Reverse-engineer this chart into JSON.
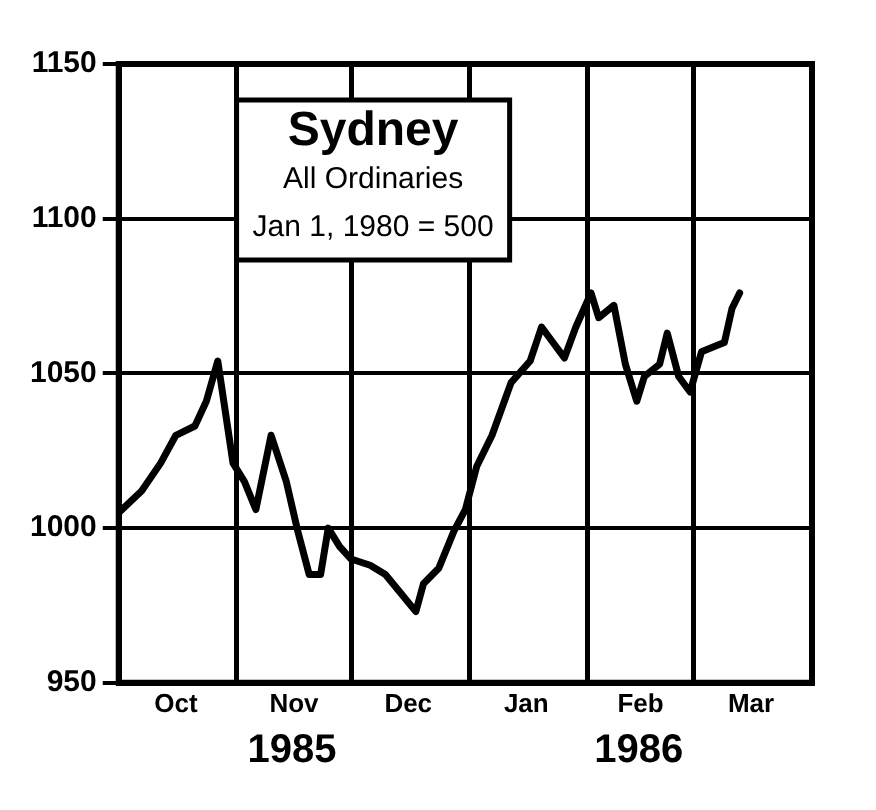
{
  "chart_data": {
    "type": "line",
    "title": "Sydney",
    "subtitle": "All Ordinaries",
    "annotations": [
      "Jan 1, 1980 = 500",
      "1985",
      "1986"
    ],
    "x": [
      "1985-10-01",
      "1985-10-07",
      "1985-10-12",
      "1985-10-16",
      "1985-10-21",
      "1985-10-24",
      "1985-10-27",
      "1985-10-31",
      "1985-11-03",
      "1985-11-06",
      "1985-11-10",
      "1985-11-14",
      "1985-11-17",
      "1985-11-20",
      "1985-11-23",
      "1985-11-25",
      "1985-11-28",
      "1985-12-01",
      "1985-12-06",
      "1985-12-10",
      "1985-12-14",
      "1985-12-18",
      "1985-12-20",
      "1985-12-24",
      "1985-12-28",
      "1985-12-31",
      "1986-01-03",
      "1986-01-07",
      "1986-01-12",
      "1986-01-17",
      "1986-01-20",
      "1986-01-23",
      "1986-01-26",
      "1986-01-29",
      "1986-02-02",
      "1986-02-04",
      "1986-02-08",
      "1986-02-11",
      "1986-02-14",
      "1986-02-16",
      "1986-02-20",
      "1986-02-22",
      "1986-02-25",
      "1986-02-28",
      "1986-03-03",
      "1986-03-07",
      "1986-03-09",
      "1986-03-11",
      "1986-03-13"
    ],
    "series": [
      {
        "color": "#000000",
        "values": [
          1005,
          1012,
          1021,
          1030,
          1033,
          1041,
          1054,
          1021,
          1015,
          1006,
          1030,
          1015,
          999,
          985,
          985,
          1000,
          994,
          990,
          988,
          985,
          979,
          973,
          982,
          987,
          999,
          1006,
          1020,
          1030,
          1047,
          1054,
          1065,
          1060,
          1055,
          1065,
          1076,
          1068,
          1072,
          1053,
          1041,
          1049,
          1053,
          1063,
          1049,
          1044,
          1057,
          1059,
          1060,
          1071,
          1076
        ]
      }
    ],
    "xlim": [
      "1985-10-01",
      "1986-04-01"
    ],
    "xticks": [
      {
        "value": "1985-10-01",
        "label": null
      },
      {
        "value": "1985-10-16",
        "label": "Oct"
      },
      {
        "value": "1985-11-01",
        "label": null
      },
      {
        "value": "1985-11-16",
        "label": "Nov"
      },
      {
        "value": "1985-12-01",
        "label": null
      },
      {
        "value": "1985-12-16",
        "label": "Dec"
      },
      {
        "value": "1986-01-01",
        "label": null
      },
      {
        "value": "1986-01-16",
        "label": "Jan"
      },
      {
        "value": "1986-02-01",
        "label": null
      },
      {
        "value": "1986-02-15",
        "label": "Feb"
      },
      {
        "value": "1986-03-01",
        "label": null
      },
      {
        "value": "1986-03-16",
        "label": "Mar"
      },
      {
        "value": "1986-04-01",
        "label": null
      }
    ],
    "ylim": [
      950,
      1150
    ],
    "yticks": [
      950,
      1000,
      1050,
      1100,
      1150
    ],
    "grid": true,
    "legend": false,
    "marker": "none",
    "line_style": "solid"
  }
}
